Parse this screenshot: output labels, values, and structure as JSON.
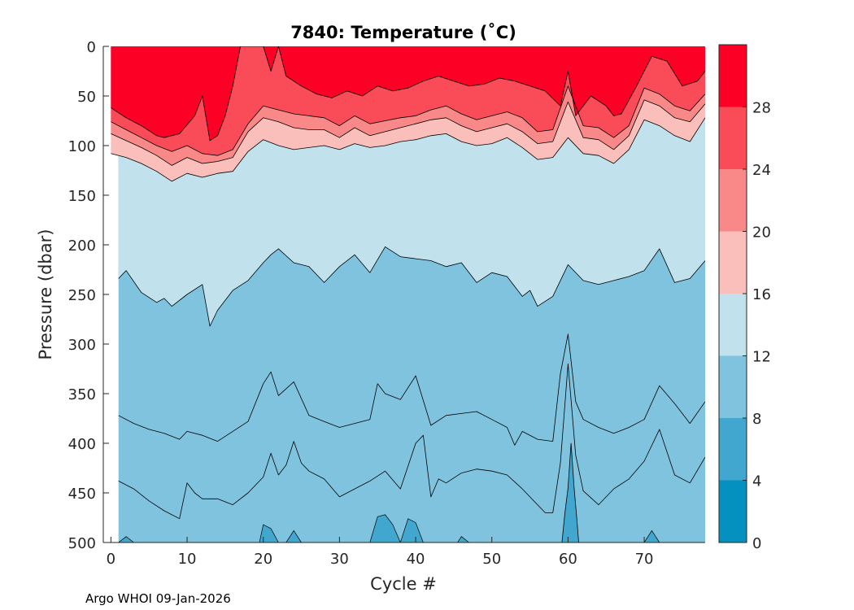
{
  "chart_data": {
    "type": "filled-contour",
    "title": "7840:  Temperature (˚C)",
    "xlabel": "Cycle #",
    "ylabel": "Pressure (dbar)",
    "xlim": [
      -1,
      78
    ],
    "ylim": [
      500,
      0
    ],
    "xticks": [
      0,
      10,
      20,
      30,
      40,
      50,
      60,
      70
    ],
    "yticks": [
      0,
      50,
      100,
      150,
      200,
      250,
      300,
      350,
      400,
      450,
      500
    ],
    "colorbar": {
      "range": [
        0,
        32
      ],
      "levels": [
        0,
        4,
        8,
        12,
        16,
        20,
        24,
        28
      ],
      "tick_labels": [
        "0",
        "4",
        "8",
        "12",
        "16",
        "20",
        "24",
        "28"
      ],
      "band_colors": [
        "#0591c0",
        "#41a7cf",
        "#7fc3de",
        "#c1e1ec",
        "#fbbfbb",
        "#f98888",
        "#fa4b58",
        "#fc0026"
      ]
    },
    "data_start_cycle": 1,
    "data_end_cycle": 78,
    "isotherms_pressure_dbar": [
      {
        "temp": 28,
        "cycles": [
          0,
          2,
          4,
          6,
          7,
          9,
          11,
          12,
          13,
          14,
          15,
          16,
          17,
          19,
          20,
          21,
          22,
          23,
          25,
          27,
          29,
          31,
          33,
          35,
          37,
          39,
          41,
          43,
          45,
          47,
          49,
          51,
          53,
          55,
          57,
          59,
          60,
          61,
          63,
          65,
          66,
          67,
          69,
          71,
          73,
          75,
          77,
          78
        ],
        "pressure": [
          62,
          72,
          80,
          90,
          92,
          88,
          70,
          50,
          95,
          90,
          70,
          40,
          0,
          0,
          0,
          25,
          0,
          30,
          40,
          48,
          52,
          45,
          50,
          40,
          45,
          42,
          35,
          30,
          35,
          40,
          38,
          32,
          35,
          40,
          45,
          60,
          25,
          70,
          50,
          60,
          70,
          68,
          40,
          10,
          15,
          40,
          35,
          25
        ]
      },
      {
        "temp": 24,
        "cycles": [
          0,
          2,
          4,
          6,
          8,
          10,
          12,
          14,
          16,
          18,
          20,
          22,
          24,
          26,
          28,
          30,
          32,
          34,
          36,
          38,
          40,
          42,
          44,
          46,
          48,
          50,
          52,
          54,
          56,
          58,
          60,
          62,
          64,
          66,
          68,
          70,
          72,
          74,
          76,
          78
        ],
        "pressure": [
          76,
          84,
          92,
          100,
          106,
          100,
          108,
          110,
          104,
          78,
          60,
          64,
          68,
          70,
          72,
          80,
          70,
          78,
          75,
          72,
          70,
          64,
          60,
          68,
          74,
          70,
          66,
          72,
          86,
          84,
          40,
          80,
          82,
          92,
          80,
          42,
          48,
          60,
          65,
          48
        ]
      },
      {
        "temp": 20,
        "cycles": [
          0,
          2,
          4,
          6,
          8,
          10,
          12,
          14,
          16,
          18,
          20,
          22,
          24,
          26,
          28,
          30,
          32,
          34,
          36,
          38,
          40,
          42,
          44,
          46,
          48,
          50,
          52,
          54,
          56,
          58,
          60,
          62,
          64,
          66,
          68,
          70,
          72,
          74,
          76,
          78
        ],
        "pressure": [
          88,
          95,
          102,
          110,
          120,
          112,
          118,
          116,
          112,
          86,
          72,
          76,
          82,
          84,
          84,
          92,
          82,
          90,
          86,
          82,
          78,
          74,
          72,
          80,
          86,
          82,
          78,
          86,
          98,
          96,
          56,
          92,
          94,
          104,
          90,
          54,
          60,
          72,
          76,
          58
        ]
      },
      {
        "temp": 16,
        "cycles": [
          0,
          2,
          4,
          6,
          8,
          10,
          12,
          14,
          16,
          18,
          20,
          22,
          24,
          26,
          28,
          30,
          32,
          34,
          36,
          38,
          40,
          42,
          44,
          46,
          48,
          50,
          52,
          54,
          56,
          58,
          60,
          62,
          64,
          66,
          68,
          70,
          72,
          74,
          76,
          78
        ],
        "pressure": [
          108,
          112,
          118,
          126,
          136,
          128,
          132,
          128,
          126,
          106,
          94,
          100,
          104,
          102,
          100,
          104,
          98,
          102,
          100,
          96,
          94,
          90,
          88,
          96,
          100,
          98,
          92,
          102,
          114,
          112,
          92,
          108,
          110,
          118,
          104,
          74,
          80,
          90,
          96,
          72
        ]
      },
      {
        "temp": 12,
        "cycles": [
          1,
          2,
          4,
          6,
          7,
          8,
          10,
          12,
          13,
          14,
          16,
          18,
          20,
          21,
          22,
          24,
          26,
          28,
          30,
          32,
          34,
          36,
          38,
          40,
          42,
          44,
          46,
          48,
          50,
          52,
          54,
          55,
          56,
          58,
          60,
          62,
          64,
          66,
          68,
          70,
          72,
          74,
          76,
          78
        ],
        "pressure": [
          234,
          226,
          248,
          258,
          254,
          262,
          250,
          240,
          282,
          266,
          246,
          236,
          218,
          210,
          204,
          218,
          222,
          238,
          222,
          210,
          228,
          202,
          212,
          214,
          216,
          222,
          218,
          238,
          228,
          232,
          252,
          246,
          262,
          252,
          220,
          236,
          240,
          236,
          232,
          226,
          204,
          238,
          234,
          216
        ]
      },
      {
        "temp": 8,
        "cycles": [
          1,
          3,
          5,
          7,
          9,
          10,
          12,
          14,
          16,
          18,
          20,
          21,
          22,
          24,
          26,
          28,
          30,
          32,
          34,
          35,
          36,
          38,
          40,
          42,
          44,
          46,
          48,
          50,
          52,
          53,
          54,
          56,
          58,
          59,
          60,
          61,
          62,
          64,
          66,
          68,
          70,
          72,
          74,
          76,
          78
        ],
        "pressure": [
          372,
          380,
          386,
          390,
          396,
          388,
          392,
          398,
          388,
          378,
          340,
          328,
          352,
          338,
          372,
          378,
          384,
          380,
          376,
          340,
          350,
          356,
          332,
          382,
          372,
          370,
          368,
          376,
          384,
          402,
          388,
          396,
          398,
          330,
          290,
          358,
          376,
          384,
          390,
          384,
          376,
          342,
          360,
          380,
          358
        ]
      },
      {
        "temp": 8,
        "cycles": [
          1,
          3,
          5,
          7,
          9,
          10,
          11,
          12,
          14,
          16,
          18,
          20,
          21,
          22,
          23,
          24,
          25,
          26,
          28,
          30,
          32,
          34,
          36,
          38,
          40,
          41,
          42,
          43,
          44,
          46,
          48,
          50,
          52,
          54,
          56,
          57,
          58,
          59,
          60,
          61,
          62,
          64,
          66,
          68,
          70,
          72,
          74,
          76,
          78
        ],
        "pressure": [
          438,
          446,
          458,
          468,
          476,
          440,
          450,
          456,
          456,
          462,
          450,
          434,
          410,
          432,
          422,
          398,
          420,
          428,
          436,
          454,
          446,
          438,
          428,
          446,
          400,
          392,
          454,
          436,
          440,
          430,
          426,
          428,
          432,
          446,
          462,
          470,
          470,
          420,
          320,
          412,
          448,
          462,
          446,
          436,
          418,
          386,
          432,
          440,
          414
        ]
      },
      {
        "temp": 4,
        "cycles": [
          59.2,
          59.6,
          60,
          60.4,
          60.8,
          61.2,
          61.4
        ],
        "pressure": [
          500,
          470,
          445,
          400,
          445,
          480,
          500
        ]
      }
    ]
  },
  "footer": {
    "credit": "Argo WHOI 09-Jan-2026"
  }
}
